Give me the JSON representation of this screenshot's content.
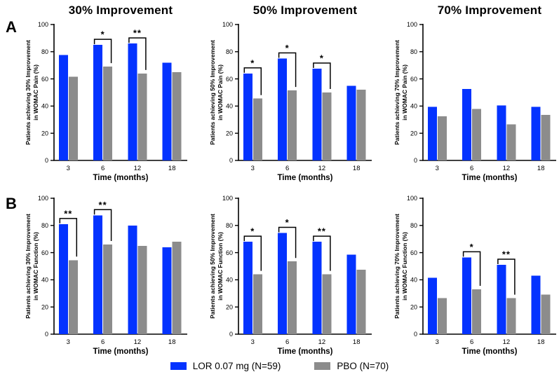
{
  "figure": {
    "panel_labels": [
      "A",
      "B"
    ],
    "column_titles": [
      "30% Improvement",
      "50% Improvement",
      "70% Improvement"
    ],
    "background_color": "#FFFFFF",
    "axis_color": "#000000"
  },
  "legend": {
    "items": [
      {
        "label": "LOR 0.07 mg (N=59)",
        "color": "#0433FF",
        "swatch": "blue-square"
      },
      {
        "label": "PBO (N=70)",
        "color": "#8C8C8C",
        "swatch": "gray-square"
      }
    ]
  },
  "chart_data": [
    {
      "id": "pain-30",
      "panel": "A",
      "type": "bar",
      "title": "30% Improvement",
      "ylabel_lines": [
        "Patients achieving 30% Improvement",
        "in WOMAC Pain (%)"
      ],
      "xlabel": "Time (months)",
      "categories": [
        "3",
        "6",
        "12",
        "18"
      ],
      "ylim": [
        0,
        100
      ],
      "yticks": [
        0,
        20,
        40,
        60,
        80,
        100
      ],
      "series": [
        {
          "name": "LOR 0.07 mg (N=59)",
          "color": "#0433FF",
          "values": [
            77.5,
            85,
            86,
            72
          ]
        },
        {
          "name": "PBO (N=70)",
          "color": "#8C8C8C",
          "values": [
            61.5,
            69,
            64,
            65
          ]
        }
      ],
      "significance": [
        {
          "category": "6",
          "label": "*"
        },
        {
          "category": "12",
          "label": "**"
        }
      ]
    },
    {
      "id": "pain-50",
      "panel": "A",
      "type": "bar",
      "title": "50% Improvement",
      "ylabel_lines": [
        "Patients achieving 50% Improvement",
        "in WOMAC Pain (%)"
      ],
      "xlabel": "Time (months)",
      "categories": [
        "3",
        "6",
        "12",
        "18"
      ],
      "ylim": [
        0,
        100
      ],
      "yticks": [
        0,
        20,
        40,
        60,
        80,
        100
      ],
      "series": [
        {
          "name": "LOR 0.07 mg (N=59)",
          "color": "#0433FF",
          "values": [
            64,
            75,
            67.5,
            55
          ]
        },
        {
          "name": "PBO (N=70)",
          "color": "#8C8C8C",
          "values": [
            45.5,
            51.5,
            50,
            52
          ]
        }
      ],
      "significance": [
        {
          "category": "3",
          "label": "*"
        },
        {
          "category": "6",
          "label": "*"
        },
        {
          "category": "12",
          "label": "*"
        }
      ]
    },
    {
      "id": "pain-70",
      "panel": "A",
      "type": "bar",
      "title": "70% Improvement",
      "ylabel_lines": [
        "Patients achieving 70% Improvement",
        "in WOMAC Pain (%)"
      ],
      "xlabel": "Time (months)",
      "categories": [
        "3",
        "6",
        "12",
        "18"
      ],
      "ylim": [
        0,
        100
      ],
      "yticks": [
        0,
        20,
        40,
        60,
        80,
        100
      ],
      "series": [
        {
          "name": "LOR 0.07 mg (N=59)",
          "color": "#0433FF",
          "values": [
            39.5,
            52.5,
            40.5,
            39.5
          ]
        },
        {
          "name": "PBO (N=70)",
          "color": "#8C8C8C",
          "values": [
            32.5,
            38,
            26.5,
            33.5
          ]
        }
      ],
      "significance": []
    },
    {
      "id": "function-30",
      "panel": "B",
      "type": "bar",
      "title": "30% Improvement",
      "ylabel_lines": [
        "Patients achieving 30% Improvement",
        "in WOMAC Function (%)"
      ],
      "xlabel": "Time (months)",
      "categories": [
        "3",
        "6",
        "12",
        "18"
      ],
      "ylim": [
        0,
        100
      ],
      "yticks": [
        0,
        20,
        40,
        60,
        80,
        100
      ],
      "series": [
        {
          "name": "LOR 0.07 mg (N=59)",
          "color": "#0433FF",
          "values": [
            81,
            87.5,
            80,
            64
          ]
        },
        {
          "name": "PBO (N=70)",
          "color": "#8C8C8C",
          "values": [
            54.5,
            66,
            65,
            68
          ]
        }
      ],
      "significance": [
        {
          "category": "3",
          "label": "**"
        },
        {
          "category": "6",
          "label": "**"
        }
      ]
    },
    {
      "id": "function-50",
      "panel": "B",
      "type": "bar",
      "title": "50% Improvement",
      "ylabel_lines": [
        "Patients achieving 50% Improvement",
        "in WOMAC Function (%)"
      ],
      "xlabel": "Time (months)",
      "categories": [
        "3",
        "6",
        "12",
        "18"
      ],
      "ylim": [
        0,
        100
      ],
      "yticks": [
        0,
        20,
        40,
        60,
        80,
        100
      ],
      "series": [
        {
          "name": "LOR 0.07 mg (N=59)",
          "color": "#0433FF",
          "values": [
            68,
            74.5,
            68,
            58.5
          ]
        },
        {
          "name": "PBO (N=70)",
          "color": "#8C8C8C",
          "values": [
            44,
            53.5,
            44,
            47.5
          ]
        }
      ],
      "significance": [
        {
          "category": "3",
          "label": "*"
        },
        {
          "category": "6",
          "label": "*"
        },
        {
          "category": "12",
          "label": "**"
        }
      ]
    },
    {
      "id": "function-70",
      "panel": "B",
      "type": "bar",
      "title": "70% Improvement",
      "ylabel_lines": [
        "Patients achieving 70% Improvement",
        "in WOMAC Function (%)"
      ],
      "xlabel": "Time (months)",
      "categories": [
        "3",
        "6",
        "12",
        "18"
      ],
      "ylim": [
        0,
        100
      ],
      "yticks": [
        0,
        20,
        40,
        60,
        80,
        100
      ],
      "series": [
        {
          "name": "LOR 0.07 mg (N=59)",
          "color": "#0433FF",
          "values": [
            41.5,
            56.5,
            51,
            43
          ]
        },
        {
          "name": "PBO (N=70)",
          "color": "#8C8C8C",
          "values": [
            26.5,
            33,
            26.5,
            29
          ]
        }
      ],
      "significance": [
        {
          "category": "6",
          "label": "*"
        },
        {
          "category": "12",
          "label": "**"
        }
      ]
    }
  ]
}
